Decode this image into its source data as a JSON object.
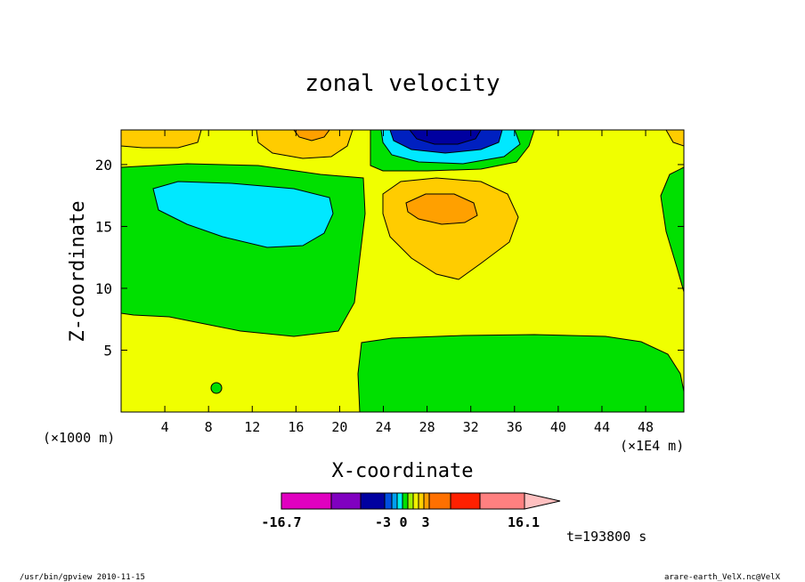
{
  "chart_data": {
    "type": "contour",
    "title": "zonal velocity",
    "xlabel": "X-coordinate",
    "ylabel": "Z-coordinate",
    "x_unit_left": "(×1000 m)",
    "x_unit_right": "(×1E4 m)",
    "xlim": [
      0,
      51.5
    ],
    "ylim": [
      0,
      22.8
    ],
    "x_ticks": [
      "4",
      "8",
      "12",
      "16",
      "20",
      "24",
      "28",
      "32",
      "36",
      "40",
      "44",
      "48"
    ],
    "y_ticks": [
      "5",
      "10",
      "15",
      "20"
    ],
    "time_label": "t=193800 s",
    "colorbar": {
      "min_label": "-16.7",
      "max_label": "16.1",
      "labels": [
        "-3",
        "0",
        "3"
      ],
      "colors": [
        "#e000c0",
        "#8000c0",
        "#0000a0",
        "#0050e0",
        "#00a0f0",
        "#00f0f0",
        "#00e000",
        "#a0f000",
        "#f0f000",
        "#ffd000",
        "#ffa000",
        "#ff7000",
        "#ff2000",
        "#ff8080",
        "#ffc0c0"
      ]
    },
    "colors": {
      "background_field": "#f0ff00",
      "positive_weak": "#00e000",
      "negative_weak": "#00e8ff",
      "negative_strong": "#0020c0",
      "negative_core": "#0000a0",
      "positive_mid": "#ffcc00",
      "positive_strong": "#ffa000"
    }
  },
  "footer": {
    "left": "/usr/bin/gpview   2010-11-15",
    "right": "arare-earth_VelX.nc@VelX"
  }
}
